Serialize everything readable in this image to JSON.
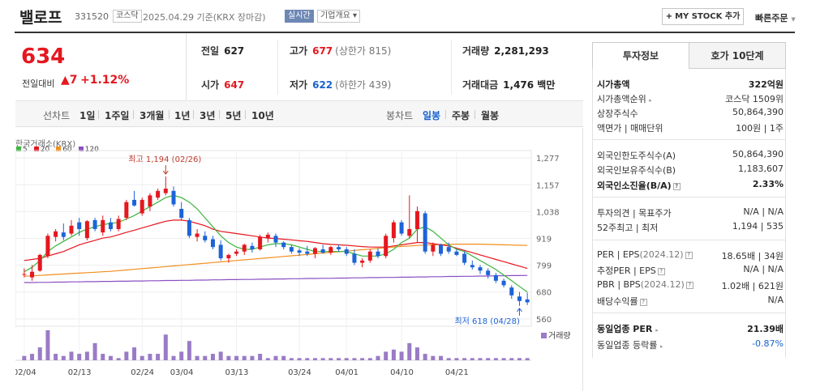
{
  "header": {
    "stock_name": "밸로프",
    "stock_code": "331520",
    "market": "코스닥",
    "date_info": "2025.04.29  기준(KRX 장마감)",
    "realtime_label": "실시간",
    "overview_label": "기업개요 ▾",
    "mystock_label": "MY STOCK 추가",
    "mystock_plus": "+",
    "quick_order_label": "빠른주문"
  },
  "price": {
    "current": "634",
    "diff_label": "전일대비",
    "diff": "▲7",
    "rate": "+1.12%"
  },
  "info": {
    "prev_close_label": "전일",
    "prev_close": "627",
    "high_label": "고가",
    "high": "677",
    "upper_limit": "(상한가 815)",
    "volume_label": "거래량",
    "volume": "2,281,293",
    "open_label": "시가",
    "open": "647",
    "low_label": "저가",
    "low": "622",
    "lower_limit": "(하한가 439)",
    "amount_label": "거래대금",
    "amount": "1,476 백만"
  },
  "period_bar": {
    "line_chart_label": "선차트",
    "periods": [
      "1일",
      "1주일",
      "3개월",
      "1년",
      "3년",
      "5년",
      "10년"
    ],
    "candle_label": "봉차트",
    "candle_periods": [
      "일봉",
      "주봉",
      "월봉"
    ],
    "active_candle": "일봉"
  },
  "chart": {
    "exchange_label": "한국거래소(KRX)",
    "volume_label": "거래량",
    "max_annotation": "최고 1,194 (02/26)",
    "min_annotation": "최저 618 (04/28)"
  },
  "chart_data": {
    "type": "candlestick",
    "y_ticks": [
      1277,
      1157,
      1038,
      919,
      799,
      680,
      560
    ],
    "ylim": [
      560,
      1277
    ],
    "x_tick_labels": [
      "02/04",
      "02/13",
      "02/24",
      "03/04",
      "03/13",
      "03/24",
      "04/01",
      "04/10",
      "04/21"
    ],
    "legend": [
      {
        "name": "5",
        "color": "#3eb53e"
      },
      {
        "name": "20",
        "color": "#e5171f"
      },
      {
        "name": "60",
        "color": "#f18e1d"
      },
      {
        "name": "120",
        "color": "#8a4fc2"
      }
    ],
    "candles": [
      {
        "o": 760,
        "h": 785,
        "l": 745,
        "c": 760
      },
      {
        "o": 745,
        "h": 800,
        "l": 730,
        "c": 770
      },
      {
        "o": 775,
        "h": 850,
        "l": 770,
        "c": 845
      },
      {
        "o": 840,
        "h": 940,
        "l": 830,
        "c": 930
      },
      {
        "o": 925,
        "h": 960,
        "l": 905,
        "c": 950
      },
      {
        "o": 945,
        "h": 985,
        "l": 910,
        "c": 925
      },
      {
        "o": 940,
        "h": 1000,
        "l": 930,
        "c": 975
      },
      {
        "o": 990,
        "h": 1010,
        "l": 930,
        "c": 960
      },
      {
        "o": 920,
        "h": 1000,
        "l": 910,
        "c": 995
      },
      {
        "o": 1000,
        "h": 1010,
        "l": 950,
        "c": 960
      },
      {
        "o": 945,
        "h": 1020,
        "l": 930,
        "c": 1000
      },
      {
        "o": 990,
        "h": 1010,
        "l": 950,
        "c": 960
      },
      {
        "o": 960,
        "h": 1020,
        "l": 950,
        "c": 1005
      },
      {
        "o": 1010,
        "h": 1090,
        "l": 1000,
        "c": 1080
      },
      {
        "o": 1090,
        "h": 1130,
        "l": 1060,
        "c": 1065
      },
      {
        "o": 1030,
        "h": 1100,
        "l": 1020,
        "c": 1090
      },
      {
        "o": 1060,
        "h": 1120,
        "l": 1040,
        "c": 1110
      },
      {
        "o": 1100,
        "h": 1140,
        "l": 1090,
        "c": 1130
      },
      {
        "o": 1120,
        "h": 1194,
        "l": 1110,
        "c": 1140
      },
      {
        "o": 1130,
        "h": 1150,
        "l": 1060,
        "c": 1070
      },
      {
        "o": 1050,
        "h": 1080,
        "l": 1000,
        "c": 1010
      },
      {
        "o": 1000,
        "h": 1010,
        "l": 920,
        "c": 930
      },
      {
        "o": 925,
        "h": 960,
        "l": 905,
        "c": 940
      },
      {
        "o": 930,
        "h": 950,
        "l": 900,
        "c": 910
      },
      {
        "o": 915,
        "h": 930,
        "l": 870,
        "c": 880
      },
      {
        "o": 890,
        "h": 910,
        "l": 820,
        "c": 830
      },
      {
        "o": 830,
        "h": 850,
        "l": 810,
        "c": 845
      },
      {
        "o": 850,
        "h": 870,
        "l": 840,
        "c": 860
      },
      {
        "o": 860,
        "h": 895,
        "l": 845,
        "c": 890
      },
      {
        "o": 885,
        "h": 900,
        "l": 855,
        "c": 870
      },
      {
        "o": 870,
        "h": 935,
        "l": 865,
        "c": 925
      },
      {
        "o": 920,
        "h": 945,
        "l": 900,
        "c": 935
      },
      {
        "o": 930,
        "h": 940,
        "l": 880,
        "c": 900
      },
      {
        "o": 900,
        "h": 905,
        "l": 870,
        "c": 880
      },
      {
        "o": 880,
        "h": 890,
        "l": 850,
        "c": 860
      },
      {
        "o": 865,
        "h": 875,
        "l": 840,
        "c": 855
      },
      {
        "o": 860,
        "h": 885,
        "l": 840,
        "c": 850
      },
      {
        "o": 850,
        "h": 880,
        "l": 830,
        "c": 875
      },
      {
        "o": 870,
        "h": 890,
        "l": 850,
        "c": 855
      },
      {
        "o": 855,
        "h": 885,
        "l": 845,
        "c": 880
      },
      {
        "o": 880,
        "h": 890,
        "l": 860,
        "c": 870
      },
      {
        "o": 870,
        "h": 880,
        "l": 840,
        "c": 850
      },
      {
        "o": 850,
        "h": 870,
        "l": 800,
        "c": 810
      },
      {
        "o": 810,
        "h": 830,
        "l": 790,
        "c": 820
      },
      {
        "o": 820,
        "h": 870,
        "l": 810,
        "c": 860
      },
      {
        "o": 860,
        "h": 875,
        "l": 830,
        "c": 840
      },
      {
        "o": 840,
        "h": 940,
        "l": 830,
        "c": 930
      },
      {
        "o": 920,
        "h": 1000,
        "l": 900,
        "c": 990
      },
      {
        "o": 990,
        "h": 1000,
        "l": 930,
        "c": 940
      },
      {
        "o": 930,
        "h": 1110,
        "l": 920,
        "c": 960
      },
      {
        "o": 960,
        "h": 1060,
        "l": 900,
        "c": 1040
      },
      {
        "o": 1030,
        "h": 1040,
        "l": 850,
        "c": 860
      },
      {
        "o": 860,
        "h": 900,
        "l": 840,
        "c": 890
      },
      {
        "o": 890,
        "h": 895,
        "l": 840,
        "c": 850
      },
      {
        "o": 880,
        "h": 900,
        "l": 850,
        "c": 860
      },
      {
        "o": 860,
        "h": 870,
        "l": 840,
        "c": 845
      },
      {
        "o": 850,
        "h": 860,
        "l": 800,
        "c": 810
      },
      {
        "o": 800,
        "h": 820,
        "l": 780,
        "c": 790
      },
      {
        "o": 790,
        "h": 800,
        "l": 760,
        "c": 775
      },
      {
        "o": 775,
        "h": 785,
        "l": 740,
        "c": 755
      },
      {
        "o": 755,
        "h": 765,
        "l": 720,
        "c": 730
      },
      {
        "o": 730,
        "h": 740,
        "l": 700,
        "c": 710
      },
      {
        "o": 700,
        "h": 710,
        "l": 650,
        "c": 665
      },
      {
        "o": 660,
        "h": 680,
        "l": 618,
        "c": 640
      },
      {
        "o": 647,
        "h": 677,
        "l": 622,
        "c": 634
      }
    ],
    "ma5": [
      770,
      790,
      820,
      860,
      885,
      905,
      925,
      945,
      960,
      970,
      980,
      985,
      990,
      1005,
      1020,
      1040,
      1060,
      1080,
      1100,
      1110,
      1100,
      1080,
      1050,
      1010,
      970,
      930,
      900,
      880,
      870,
      870,
      880,
      890,
      895,
      895,
      890,
      880,
      870,
      860,
      860,
      860,
      860,
      860,
      850,
      840,
      840,
      840,
      850,
      870,
      900,
      920,
      960,
      970,
      950,
      920,
      890,
      870,
      860,
      840,
      820,
      800,
      780,
      755,
      730,
      705,
      680
    ],
    "ma20": [
      820,
      825,
      830,
      840,
      850,
      860,
      875,
      890,
      900,
      910,
      920,
      925,
      935,
      945,
      955,
      965,
      975,
      985,
      995,
      1000,
      1000,
      995,
      985,
      975,
      960,
      950,
      945,
      940,
      935,
      930,
      925,
      920,
      918,
      915,
      912,
      908,
      905,
      900,
      895,
      892,
      890,
      888,
      885,
      882,
      880,
      880,
      880,
      885,
      890,
      895,
      900,
      900,
      895,
      890,
      885,
      875,
      865,
      855,
      845,
      835,
      825,
      815,
      805,
      795,
      785
    ],
    "ma60": [
      750,
      752,
      754,
      756,
      758,
      760,
      762,
      764,
      766,
      768,
      770,
      772,
      775,
      778,
      781,
      784,
      787,
      790,
      793,
      796,
      799,
      802,
      805,
      808,
      811,
      814,
      817,
      820,
      823,
      826,
      829,
      832,
      835,
      838,
      841,
      844,
      847,
      850,
      853,
      856,
      859,
      862,
      865,
      868,
      871,
      874,
      877,
      880,
      883,
      885,
      887,
      889,
      890,
      891,
      892,
      893,
      893,
      893,
      893,
      892,
      891,
      890,
      889,
      888,
      887
    ],
    "ma120": [
      722,
      722,
      723,
      723,
      724,
      724,
      725,
      725,
      726,
      726,
      727,
      727,
      728,
      728,
      729,
      729,
      730,
      730,
      731,
      731,
      732,
      732,
      733,
      733,
      734,
      734,
      735,
      735,
      736,
      736,
      737,
      737,
      738,
      738,
      739,
      739,
      740,
      740,
      741,
      741,
      742,
      742,
      743,
      743,
      744,
      744,
      745,
      745,
      746,
      746,
      747,
      747,
      748,
      748,
      749,
      749,
      750,
      750,
      751,
      751,
      752,
      752,
      753,
      753,
      754
    ],
    "volumes": [
      2,
      3,
      6,
      14,
      3,
      2,
      4,
      3,
      4,
      8,
      3,
      2,
      1,
      4,
      6,
      2,
      3,
      3,
      12,
      2,
      4,
      9,
      2,
      2,
      3,
      4,
      2,
      2,
      2,
      2,
      3,
      1,
      2,
      2,
      1,
      1,
      1,
      1,
      1,
      1,
      1,
      1,
      1,
      1,
      1,
      2,
      4,
      5,
      4,
      8,
      6,
      3,
      2,
      2,
      1,
      1,
      1,
      1,
      1,
      1,
      1,
      1,
      1,
      1,
      1
    ]
  },
  "right_panel": {
    "tabs": [
      "투자정보",
      "호가 10단계"
    ],
    "market_cap_label": "시가총액",
    "market_cap": "322억원",
    "market_cap_rank_label": "시가총액순위",
    "market_cap_rank": "코스닥 1509위",
    "shares_label": "상장주식수",
    "shares": "50,864,390",
    "face_value_label": "액면가 | 매매단위",
    "face_value": "100원 | 1주",
    "foreign_limit_label": "외국인한도주식수(A)",
    "foreign_limit": "50,864,390",
    "foreign_hold_label": "외국인보유주식수(B)",
    "foreign_hold": "1,183,607",
    "foreign_rate_label": "외국인소진율(B/A)",
    "foreign_rate": "2.33%",
    "opinion_label": "투자의견 | 목표주가",
    "opinion": "N/A | N/A",
    "week52_label": "52주최고 | 최저",
    "week52": "1,194 | 535",
    "per_label": "PER | EPS",
    "per_date": "(2024.12)",
    "per": "18.65배 | 34원",
    "est_per_label": "추정PER | EPS",
    "est_per": "N/A | N/A",
    "pbr_label": "PBR | BPS",
    "pbr_date": "(2024.12)",
    "pbr": "1.02배 | 621원",
    "dividend_label": "배당수익률",
    "dividend": "N/A",
    "ind_per_label": "동일업종 PER",
    "ind_per": "21.39배",
    "ind_rate_label": "동일업종 등락률",
    "ind_rate": "-0.87%"
  }
}
